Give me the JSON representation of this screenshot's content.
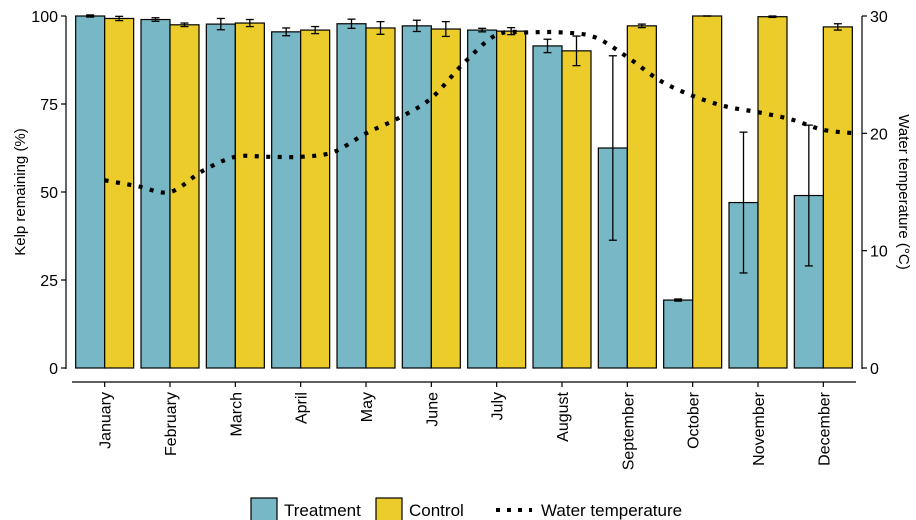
{
  "chart_data": {
    "type": "bar",
    "categories": [
      "January",
      "February",
      "March",
      "April",
      "May",
      "June",
      "July",
      "August",
      "September",
      "October",
      "November",
      "December"
    ],
    "series": [
      {
        "name": "Treatment",
        "color": "#78B7C5",
        "values": [
          100,
          99,
          97.7,
          95.5,
          97.8,
          97.2,
          96,
          91.5,
          62.5,
          19.3,
          47,
          49
        ],
        "error": [
          0.3,
          0.5,
          1.6,
          1.1,
          1.3,
          1.6,
          0.5,
          1.9,
          26.2,
          0.3,
          20,
          20
        ]
      },
      {
        "name": "Control",
        "color": "#EBCC2A",
        "values": [
          99.3,
          97.5,
          98,
          96,
          96.6,
          96.3,
          95.7,
          90.1,
          97.2,
          100,
          99.8,
          96.9
        ],
        "error": [
          0.6,
          0.5,
          1.0,
          1.0,
          1.8,
          2.1,
          1.0,
          4.2,
          0.5,
          0.0,
          0.2,
          0.9
        ]
      },
      {
        "name": "Water temperature",
        "type": "line",
        "style": "dotted",
        "color": "#000000",
        "axis": "right",
        "x": [
          0.5,
          1,
          1.5,
          2,
          2.5,
          3,
          3.5,
          4,
          4.5,
          5,
          5.5,
          6,
          6.5,
          7,
          7.5,
          8,
          8.5,
          9,
          9.5,
          10,
          10.5,
          11,
          11.5,
          12
        ],
        "values": [
          16,
          15.5,
          15,
          16.8,
          18,
          18,
          18,
          18.4,
          20,
          21.3,
          23,
          26,
          28.4,
          28.6,
          28.6,
          28.2,
          26.5,
          24.5,
          23.2,
          22.3,
          21.8,
          21.2,
          20.3,
          20
        ]
      }
    ],
    "ylabel": "Kelp remaining (%)",
    "y2label": "Water temperature (°C)",
    "ylim": [
      0,
      100
    ],
    "yticks": [
      0,
      25,
      50,
      75,
      100
    ],
    "y2lim": [
      0,
      30
    ],
    "y2ticks": [
      0,
      10,
      20,
      30
    ],
    "legend_position": "bottom",
    "grid": false
  }
}
